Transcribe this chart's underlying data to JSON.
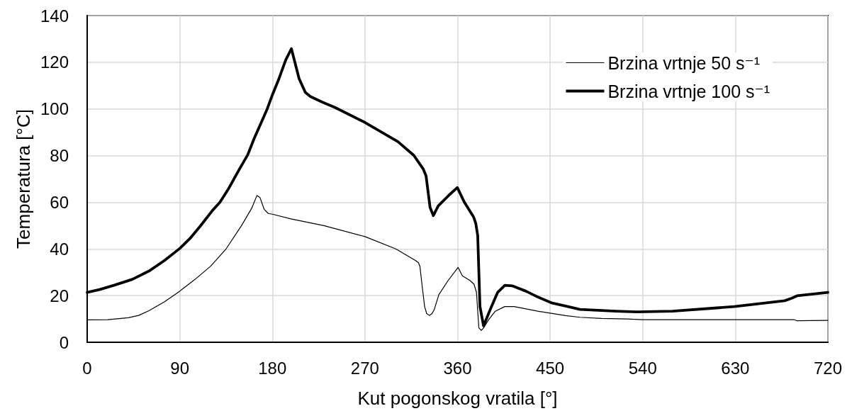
{
  "chart_data": {
    "type": "line",
    "xlabel": "Kut pogonskog vratila [°]",
    "ylabel": "Temperatura [°C]",
    "xlim": [
      0,
      720
    ],
    "xticks": [
      0,
      90,
      180,
      270,
      360,
      450,
      540,
      630,
      720
    ],
    "ylim": [
      0,
      140
    ],
    "yticks": [
      0,
      20,
      40,
      60,
      80,
      100,
      120,
      140
    ],
    "grid": true,
    "legend": "top right",
    "marker": "none",
    "line_style": "solid",
    "series": [
      {
        "name": "Brzina vrtnje 50 s⁻¹",
        "color": "#000000",
        "x": [
          0,
          20,
          40,
          50,
          60,
          75,
          90,
          105,
          120,
          135,
          150,
          160,
          165,
          168,
          172,
          176,
          180,
          198,
          230,
          270,
          300,
          319,
          322,
          323.4,
          325.8,
          328,
          330,
          332.6,
          335,
          337.2,
          341.8,
          350.9,
          360.5,
          364.7,
          372,
          376,
          378.4,
          380.7,
          383,
          385.3,
          390,
          396.7,
          405.9,
          415,
          438,
          465,
          479,
          500,
          525,
          540,
          687,
          690,
          720
        ],
        "values": [
          9.6,
          9.7,
          10.5,
          11.5,
          13.5,
          17.3,
          21.9,
          27,
          32.6,
          40,
          50,
          57.5,
          62.9,
          62,
          57,
          55.2,
          54.9,
          52.9,
          50,
          45.3,
          40,
          35.1,
          34.1,
          32.6,
          23.4,
          15.3,
          12.3,
          11.5,
          12.2,
          13.8,
          20.4,
          26.5,
          32.1,
          28.5,
          26.5,
          24.9,
          21.4,
          6.2,
          5.1,
          6.1,
          9.5,
          13.3,
          15.3,
          15.3,
          13.3,
          11.4,
          10.7,
          10.2,
          10,
          9.7,
          9.7,
          9.2,
          9.4
        ]
      },
      {
        "name": "Brzina vrtnje 100 s⁻¹",
        "color": "#000000",
        "x": [
          0,
          12,
          26,
          44,
          60,
          75,
          90,
          100,
          110,
          122,
          129,
          137,
          148,
          156,
          162,
          170,
          175,
          180,
          186,
          193,
          198.5,
          206,
          212,
          217,
          228,
          241,
          270,
          286,
          302,
          317.5,
          326.7,
          329.4,
          333.3,
          336.5,
          341.2,
          351.8,
          359.8,
          366.4,
          375.6,
          377.7,
          379.6,
          381.8,
          385.3,
          392,
          399,
          406,
          413,
          426.5,
          438,
          452,
          465,
          479,
          514,
          534,
          569,
          629,
          678,
          685,
          690,
          720
        ],
        "values": [
          21.4,
          22.6,
          24.4,
          27,
          30.5,
          35,
          40.2,
          44.5,
          49.8,
          56.6,
          60,
          65.5,
          74.2,
          80.3,
          87,
          95,
          100,
          106,
          112.5,
          121,
          125.8,
          113,
          107.1,
          105.3,
          103,
          100.6,
          94.2,
          90.1,
          86,
          80.1,
          74.2,
          71.3,
          57.8,
          54.3,
          58.4,
          63.1,
          66.3,
          60.2,
          53.7,
          51,
          45.8,
          15.3,
          7,
          14.3,
          21.4,
          24.4,
          24.2,
          21.9,
          19.4,
          16.8,
          15.5,
          14.1,
          13.3,
          13,
          13.3,
          15.3,
          17.8,
          18.9,
          19.9,
          21.4
        ]
      }
    ]
  }
}
